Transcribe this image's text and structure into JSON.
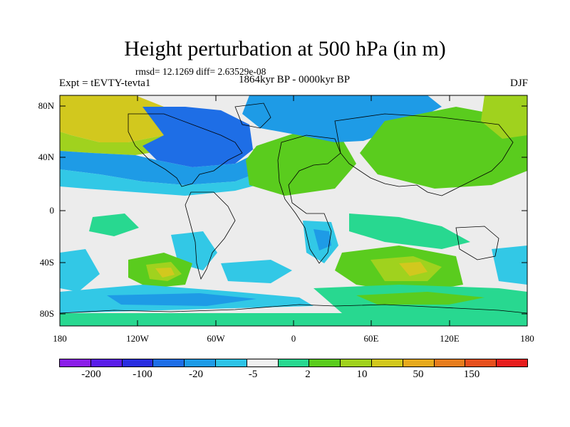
{
  "title": "Height perturbation at 500 hPa (in m)",
  "stats": "rmsd= 12.1269 diff= 2.63529e-08",
  "experiment": "Expt = tEVTY-tevta1",
  "period": "1864kyr BP - 0000kyr BP",
  "season": "DJF",
  "axes": {
    "y_ticks": [
      "80N",
      "40N",
      "0",
      "40S",
      "80S"
    ],
    "x_ticks": [
      "180",
      "120W",
      "60W",
      "0",
      "60E",
      "120E",
      "180"
    ]
  },
  "colorbar": {
    "colors": [
      "#8b1ee8",
      "#5a1ee8",
      "#2a2ee0",
      "#1e6ee6",
      "#1e9be6",
      "#2dc3e6",
      "#f0f0f0",
      "#28d890",
      "#5acc1e",
      "#a0d21e",
      "#d2c81e",
      "#e6aa1e",
      "#e67d1e",
      "#e6501e",
      "#e61e1e"
    ],
    "labels": [
      "-200",
      "-100",
      "-20",
      "-5",
      "2",
      "10",
      "50",
      "150"
    ]
  },
  "field_colors": {
    "neutral": "#ececec",
    "weak_neg": "#32c8e6",
    "neg": "#1e9be6",
    "strong_neg": "#1e6ee6",
    "very_strong_neg": "#2a2ee0",
    "weak_pos": "#28d890",
    "pos": "#5acc1e",
    "strong_pos": "#a0d21e",
    "very_strong_pos": "#d2c81e"
  }
}
